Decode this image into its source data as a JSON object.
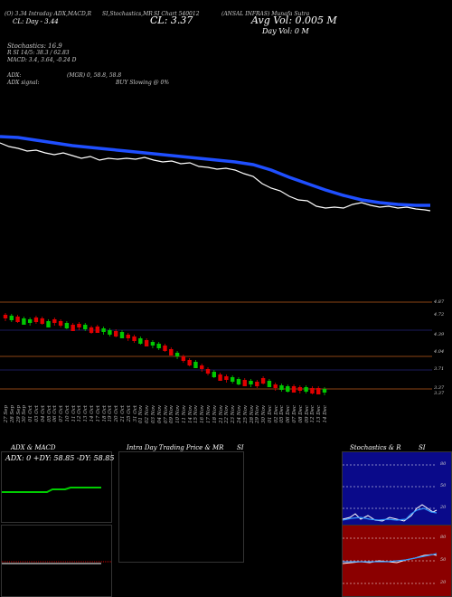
{
  "header": {
    "title_left": "(O) 3.34 Intraday ADX,MACD,R",
    "title_mid": "SI,Stochastics,MR",
    "title_mid2": "SI Chart 540012",
    "title_right": "(ANSAL INFRAS) Munafa Sutra",
    "cl_left": "CL: Day - 3.44",
    "cl_value": "CL: 3.37",
    "avg_vol": "Avg Vol: 0.005 M",
    "day_vol": "Day Vol: 0   M"
  },
  "indicators": {
    "stochastics": "Stochastics: 16.9",
    "rsi": "R         SI 14/5: 38.3 / 62.83",
    "macd": "MACD: 3.4, 3.64, -0.24  D",
    "adx": "ADX:",
    "adx_vals": "(MGR) 0, 58.8, 58.8",
    "adx_signal": "ADX  signal:",
    "buy_signal": "BUY Slowing @ 0%"
  },
  "price_levels": [
    "4.87",
    "4.72",
    "4.39",
    "4.04",
    "3.71",
    "3.37",
    "3.37"
  ],
  "dates": [
    "27 Sep",
    "28 Sep",
    "29 Sep",
    "30 Sep",
    "01 Oct",
    "03 Oct",
    "04 Oct",
    "05 Oct",
    "06 Oct",
    "07 Oct",
    "10 Oct",
    "11 Oct",
    "12 Oct",
    "13 Oct",
    "14 Oct",
    "17 Oct",
    "18 Oct",
    "19 Oct",
    "20 Oct",
    "21 Oct",
    "25 Oct",
    "31 Oct",
    "01 Nov",
    "02 Nov",
    "03 Nov",
    "04 Nov",
    "07 Nov",
    "09 Nov",
    "10 Nov",
    "11 Nov",
    "14 Nov",
    "15 Nov",
    "16 Nov",
    "17 Nov",
    "18 Nov",
    "21 Nov",
    "22 Nov",
    "23 Nov",
    "24 Nov",
    "25 Nov",
    "28 Nov",
    "29 Nov",
    "30 Nov",
    "01 Dec",
    "02 Dec",
    "05 Dec",
    "06 Dec",
    "07 Dec",
    "08 Dec",
    "09 Dec",
    "12 Dec",
    "13 Dec",
    "14 Dec"
  ],
  "panels": {
    "adx_title": "ADX  & MACD",
    "adx_values": "ADX: 0  +DY: 58.85  -DY: 58.85",
    "intraday_title": "Intra  Day Trading Price  & MR",
    "intraday_si": "SI",
    "stoch_title": "Stochastics & R",
    "stoch_si": "SI",
    "stoch_levels": [
      "80",
      "50",
      "20"
    ],
    "rsi_levels": [
      "80",
      "50",
      "20"
    ]
  },
  "colors": {
    "background": "#000000",
    "ma_blue": "#1f4fff",
    "price_line": "#ffffff",
    "candle_up": "#00c800",
    "candle_down": "#e00000",
    "level_line": "#8b4513",
    "stoch_bg": "#0a0a8a",
    "rsi_bg": "#8b0000",
    "adx_green": "#00cc00"
  }
}
